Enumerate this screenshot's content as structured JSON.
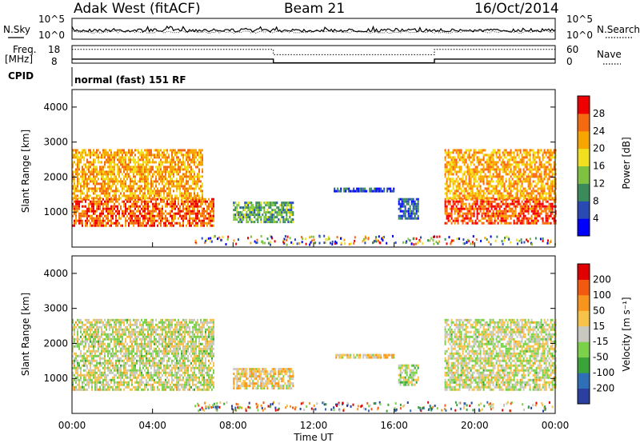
{
  "header": {
    "station": "Adak West (fitACF)",
    "beam": "Beam 21",
    "date": "16/Oct/2014"
  },
  "noise_panel": {
    "left_label": "N.Sky",
    "right_label": "N.Search",
    "ticks_left": [
      "10^5",
      "10^0"
    ],
    "ticks_right": [
      "10^5",
      "10^0"
    ]
  },
  "freq_panel": {
    "left_label_1": "Freq.",
    "left_label_2": "[MHz]",
    "right_label": "Nave",
    "ticks_left": [
      "18",
      "8"
    ],
    "ticks_right": [
      "60",
      "0"
    ],
    "freq_mhz": [
      10.3,
      8.2
    ],
    "nave": [
      47,
      29
    ]
  },
  "cpid": {
    "label": "CPID",
    "program": "normal (fast) 151 RF"
  },
  "chart_data": [
    {
      "type": "heatmap",
      "name": "power",
      "ylabel": "Slant Range [km]",
      "xlabel": "",
      "ylim": [
        0,
        4500
      ],
      "y_ticks": [
        "1000",
        "2000",
        "3000",
        "4000"
      ],
      "colorbar_label": "Power [dB]",
      "colorbar_ticks": [
        "4",
        "8",
        "12",
        "16",
        "20",
        "24",
        "28"
      ],
      "colors": [
        "#0000ff",
        "#2a4ab3",
        "#3a8a5a",
        "#7fc241",
        "#f0e020",
        "#f7a500",
        "#f36a10",
        "#ee0000"
      ],
      "regions": [
        {
          "t0": 0.0,
          "t1": 7.0,
          "r0": 600,
          "r1": 1400,
          "value": 26
        },
        {
          "t0": 0.0,
          "t1": 6.5,
          "r0": 1400,
          "r1": 2800,
          "value": 22
        },
        {
          "t0": 8.0,
          "t1": 11.0,
          "r0": 700,
          "r1": 1300,
          "value": 12
        },
        {
          "t0": 13.0,
          "t1": 16.0,
          "r0": 1600,
          "r1": 1700,
          "value": 6
        },
        {
          "t0": 16.2,
          "t1": 17.2,
          "r0": 800,
          "r1": 1400,
          "value": 7
        },
        {
          "t0": 18.5,
          "t1": 24.0,
          "r0": 700,
          "r1": 1400,
          "value": 27
        },
        {
          "t0": 18.5,
          "t1": 24.0,
          "r0": 1400,
          "r1": 2800,
          "value": 22
        }
      ]
    },
    {
      "type": "heatmap",
      "name": "velocity",
      "ylabel": "Slant Range [km]",
      "xlabel": "Time UT",
      "ylim": [
        0,
        4500
      ],
      "y_ticks": [
        "1000",
        "2000",
        "3000",
        "4000"
      ],
      "x_ticks": [
        "00:00",
        "04:00",
        "08:00",
        "12:00",
        "16:00",
        "20:00",
        "00:00"
      ],
      "x_values": [
        0,
        4,
        8,
        12,
        16,
        20,
        24
      ],
      "colorbar_label": "Velocity [m s⁻¹]",
      "colorbar_ticks": [
        "200",
        "100",
        "50",
        "15",
        "-15",
        "-50",
        "-100",
        "-200"
      ],
      "colors": [
        "#2a3fa0",
        "#2e6fb8",
        "#3aa33a",
        "#7bd14a",
        "#c8c8c0",
        "#f7c24a",
        "#f7941d",
        "#f25a10",
        "#e00000"
      ],
      "regions": [
        {
          "t0": 0.0,
          "t1": 7.0,
          "r0": 700,
          "r1": 2700,
          "value": 0
        },
        {
          "t0": 8.0,
          "t1": 11.0,
          "r0": 700,
          "r1": 1300,
          "value": 40
        },
        {
          "t0": 13.0,
          "t1": 16.0,
          "r0": 1600,
          "r1": 1700,
          "value": 30
        },
        {
          "t0": 16.2,
          "t1": 17.2,
          "r0": 800,
          "r1": 1400,
          "value": -20
        },
        {
          "t0": 18.5,
          "t1": 24.0,
          "r0": 700,
          "r1": 2700,
          "value": 0
        }
      ]
    }
  ]
}
